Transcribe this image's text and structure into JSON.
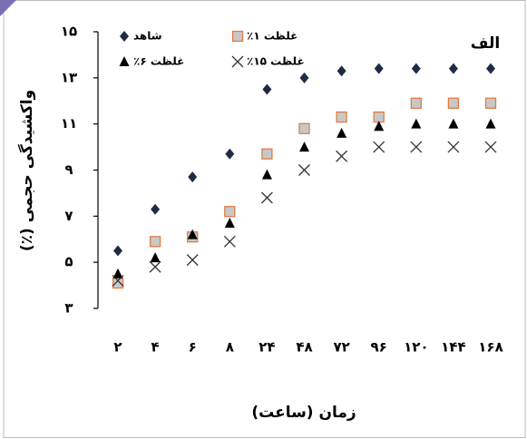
{
  "chart_data": {
    "type": "scatter",
    "annotation": "الف",
    "y_label": "واکشیدگی حجمی (٪)",
    "x_label": "زمان (ساعت)",
    "categories": [
      "۲",
      "۴",
      "۶",
      "۸",
      "۲۴",
      "۴۸",
      "۷۲",
      "۹۶",
      "۱۲۰",
      "۱۴۴",
      "۱۶۸"
    ],
    "ylim": [
      3,
      15
    ],
    "yticks": [
      {
        "value": 3,
        "label": "۳"
      },
      {
        "value": 5,
        "label": "۵"
      },
      {
        "value": 7,
        "label": "۷"
      },
      {
        "value": 9,
        "label": "۹"
      },
      {
        "value": 11,
        "label": "۱۱"
      },
      {
        "value": 13,
        "label": "۱۳"
      },
      {
        "value": 15,
        "label": "۱۵"
      }
    ],
    "series": [
      {
        "name": "شاهد",
        "marker": "diamond",
        "color": "#1f2a44",
        "values": [
          5.5,
          7.3,
          8.7,
          9.7,
          12.5,
          13.0,
          13.3,
          13.4,
          13.4,
          13.4,
          13.4
        ]
      },
      {
        "name": "غلظت ۱٪",
        "marker": "square",
        "color": "#e07b45",
        "values": [
          4.1,
          5.9,
          6.1,
          7.2,
          9.7,
          10.8,
          11.3,
          11.3,
          11.9,
          11.9,
          11.9
        ]
      },
      {
        "name": "غلظت ۶٪",
        "marker": "triangle",
        "color": "#000000",
        "values": [
          4.5,
          5.2,
          6.2,
          6.7,
          8.8,
          10.0,
          10.6,
          10.9,
          11.0,
          11.0,
          11.0
        ]
      },
      {
        "name": "غلظت ۱۵٪",
        "marker": "cross",
        "color": "#333333",
        "values": [
          4.2,
          4.8,
          5.1,
          5.9,
          7.8,
          9.0,
          9.6,
          10.0,
          10.0,
          10.0,
          10.0
        ]
      }
    ]
  }
}
